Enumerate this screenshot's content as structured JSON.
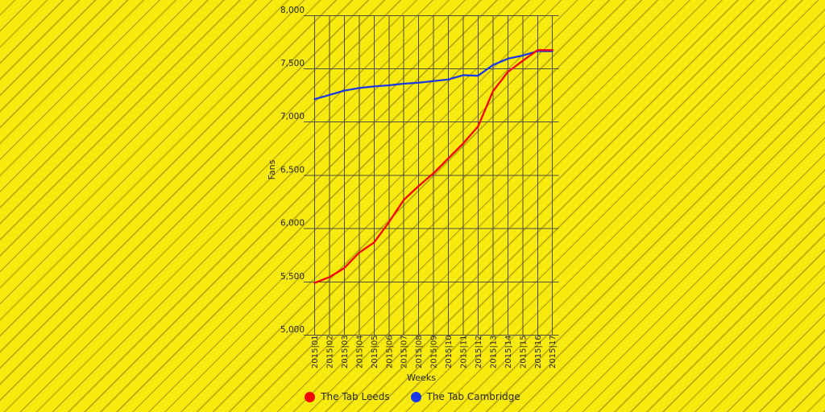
{
  "chart_data": {
    "type": "line",
    "title": "",
    "xlabel": "Weeks",
    "ylabel": "Fans",
    "categories": [
      "2015|01",
      "2015|02",
      "2015|03",
      "2015|04",
      "2015|05",
      "2015|06",
      "2015|07",
      "2015|08",
      "2015|09",
      "2015|10",
      "2015|11",
      "2015|12",
      "2015|13",
      "2015|14",
      "2015|15",
      "2015|16",
      "2015|17"
    ],
    "series": [
      {
        "name": "The Tab Leeds",
        "color": "#f40505",
        "values": [
          5490,
          5545,
          5630,
          5775,
          5870,
          6060,
          6270,
          6400,
          6520,
          6660,
          6800,
          6960,
          7290,
          7470,
          7575,
          7675,
          7675
        ]
      },
      {
        "name": "The Tab Cambridge",
        "color": "#1a38e8",
        "values": [
          7215,
          7255,
          7295,
          7320,
          7335,
          7345,
          7360,
          7370,
          7385,
          7400,
          7440,
          7435,
          7535,
          7595,
          7625,
          7665,
          7665
        ]
      }
    ],
    "ylim": [
      5000,
      8000
    ],
    "y_ticks": [
      {
        "value": 8000,
        "label": "8,000"
      },
      {
        "value": 7500,
        "label": "7,500"
      },
      {
        "value": 7000,
        "label": "7,000"
      },
      {
        "value": 6500,
        "label": "6,500"
      },
      {
        "value": 6000,
        "label": "6,000"
      },
      {
        "value": 5500,
        "label": "5,500"
      },
      {
        "value": 5000,
        "label": "5,000"
      }
    ],
    "grid": true,
    "legend_position": "bottom",
    "colors": {
      "background": "#f8e90e",
      "stripe": "#b7a81c",
      "gridline": "#4d4d42",
      "text": "#262626"
    }
  }
}
